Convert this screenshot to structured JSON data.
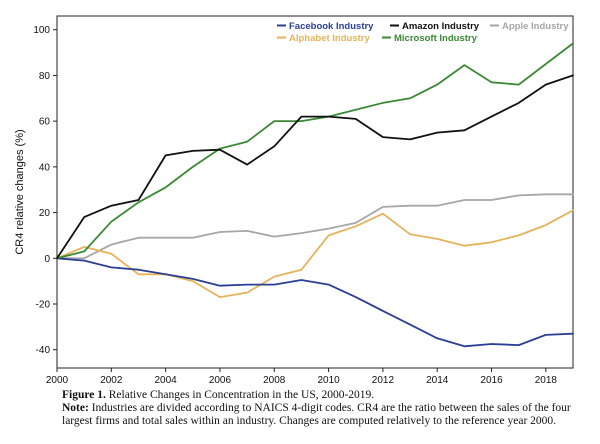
{
  "chart_data": {
    "type": "line",
    "title": "",
    "xlabel": "",
    "ylabel": "CR4 relative changes (%)",
    "xlim": [
      2000,
      2019
    ],
    "ylim": [
      -48,
      106
    ],
    "x": [
      2000,
      2001,
      2002,
      2003,
      2004,
      2005,
      2006,
      2007,
      2008,
      2009,
      2010,
      2011,
      2012,
      2013,
      2014,
      2015,
      2016,
      2017,
      2018,
      2019
    ],
    "x_ticks": [
      "2000",
      "2002",
      "2004",
      "2006",
      "2008",
      "2010",
      "2012",
      "2014",
      "2016",
      "2018"
    ],
    "y_ticks": [
      "-40",
      "-20",
      "0",
      "20",
      "40",
      "60",
      "80",
      "100"
    ],
    "grid": false,
    "legend_position": "top-right",
    "series": [
      {
        "name": "Facebook Industry",
        "color": "#2a3f96",
        "values": [
          0,
          -1,
          -4,
          -5,
          -7,
          -9,
          -12,
          -11.5,
          -11.5,
          -9.5,
          -11.5,
          -17,
          -23,
          -29,
          -35,
          -38.5,
          -37.5,
          -38,
          -33.5,
          -33
        ]
      },
      {
        "name": "Amazon Industry",
        "color": "#111111",
        "values": [
          0,
          18,
          23,
          25.5,
          45,
          47,
          47.5,
          41,
          49,
          62,
          62,
          61,
          53,
          52,
          55,
          56,
          62,
          68,
          76,
          80
        ]
      },
      {
        "name": "Apple Industry",
        "color": "#a6a6a6",
        "values": [
          0,
          0,
          6,
          9,
          9,
          9,
          11.5,
          12,
          9.5,
          11,
          13,
          15.5,
          22.5,
          23,
          23,
          25.5,
          25.5,
          27.5,
          28,
          28
        ]
      },
      {
        "name": "Alphabet Industry",
        "color": "#e6b35a",
        "values": [
          0,
          5,
          2,
          -7,
          -7,
          -10,
          -17,
          -15,
          -8,
          -5,
          10,
          14,
          19.5,
          10.5,
          8.5,
          5.5,
          7,
          10,
          14.5,
          21
        ]
      },
      {
        "name": "Microsoft Industry",
        "color": "#3a8a34",
        "values": [
          0,
          3,
          16,
          24.5,
          31,
          40,
          48,
          51,
          60,
          60,
          62,
          65,
          68,
          70,
          76,
          84.5,
          77,
          76,
          85,
          94
        ]
      }
    ]
  },
  "caption": {
    "fig_label": "Figure 1.",
    "fig_text": " Relative Changes in Concentration in the US, 2000-2019.",
    "note_label": "Note:",
    "note_text": " Industries are divided according to NAICS 4-digit codes. CR4 are the ratio between the sales of the four largest firms and total sales within an industry. Changes are computed relatively to the reference year 2000."
  }
}
